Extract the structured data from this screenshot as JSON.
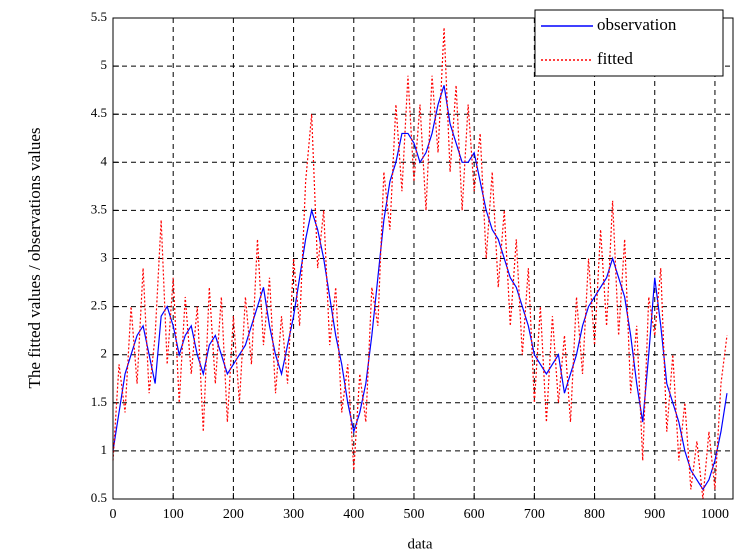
{
  "chart_data": {
    "type": "line",
    "xlabel": "data",
    "ylabel": "The fitted values / observations values",
    "xlim": [
      0,
      1030
    ],
    "ylim": [
      0.5,
      5.5
    ],
    "xticks": [
      0,
      100,
      200,
      300,
      400,
      500,
      600,
      700,
      800,
      900,
      1000
    ],
    "yticks": [
      0.5,
      1,
      1.5,
      2,
      2.5,
      3,
      3.5,
      4,
      4.5,
      5,
      5.5
    ],
    "grid": true,
    "legend": "upper right",
    "x": [
      0,
      10,
      20,
      30,
      40,
      50,
      60,
      70,
      80,
      90,
      100,
      110,
      120,
      130,
      140,
      150,
      160,
      170,
      180,
      190,
      200,
      210,
      220,
      230,
      240,
      250,
      260,
      270,
      280,
      290,
      300,
      310,
      320,
      330,
      340,
      350,
      360,
      370,
      380,
      390,
      400,
      410,
      420,
      430,
      440,
      450,
      460,
      470,
      480,
      490,
      500,
      510,
      520,
      530,
      540,
      550,
      560,
      570,
      580,
      590,
      600,
      610,
      620,
      630,
      640,
      650,
      660,
      670,
      680,
      690,
      700,
      710,
      720,
      730,
      740,
      750,
      760,
      770,
      780,
      790,
      800,
      810,
      820,
      830,
      840,
      850,
      860,
      870,
      880,
      890,
      900,
      910,
      920,
      930,
      940,
      950,
      960,
      970,
      980,
      990,
      1000,
      1010,
      1020
    ],
    "series": [
      {
        "name": "observation",
        "color": "#0000ff",
        "dash": "solid",
        "values": [
          1.0,
          1.4,
          1.8,
          2.0,
          2.2,
          2.3,
          2.0,
          1.7,
          2.4,
          2.5,
          2.3,
          2.0,
          2.2,
          2.3,
          2.0,
          1.8,
          2.1,
          2.2,
          2.0,
          1.8,
          1.9,
          2.0,
          2.1,
          2.3,
          2.5,
          2.7,
          2.3,
          2.0,
          1.8,
          2.1,
          2.4,
          2.8,
          3.2,
          3.5,
          3.3,
          3.0,
          2.6,
          2.2,
          1.9,
          1.5,
          1.2,
          1.4,
          1.7,
          2.2,
          2.8,
          3.4,
          3.8,
          4.0,
          4.3,
          4.3,
          4.2,
          4.0,
          4.1,
          4.3,
          4.6,
          4.8,
          4.4,
          4.2,
          4.0,
          4.0,
          4.1,
          3.8,
          3.5,
          3.3,
          3.2,
          3.0,
          2.8,
          2.7,
          2.5,
          2.3,
          2.0,
          1.9,
          1.8,
          1.9,
          2.0,
          1.6,
          1.8,
          2.0,
          2.3,
          2.5,
          2.6,
          2.7,
          2.8,
          3.0,
          2.8,
          2.6,
          2.2,
          1.7,
          1.3,
          2.0,
          2.8,
          2.3,
          1.7,
          1.5,
          1.3,
          1.0,
          0.8,
          0.7,
          0.6,
          0.7,
          0.9,
          1.2,
          1.6
        ]
      },
      {
        "name": "fitted",
        "color": "#ff0000",
        "dash": "dotted",
        "values": [
          0.9,
          1.9,
          1.4,
          2.5,
          1.7,
          2.9,
          1.6,
          2.2,
          3.4,
          1.9,
          2.8,
          1.5,
          2.6,
          1.8,
          2.5,
          1.2,
          2.7,
          1.7,
          2.6,
          1.3,
          2.4,
          1.5,
          2.6,
          1.9,
          3.2,
          2.1,
          2.8,
          1.6,
          2.4,
          1.7,
          3.0,
          2.3,
          3.8,
          4.5,
          2.9,
          3.5,
          2.1,
          2.7,
          1.4,
          1.9,
          0.8,
          1.8,
          1.3,
          2.7,
          2.3,
          3.9,
          3.3,
          4.6,
          3.7,
          4.9,
          3.8,
          4.6,
          3.5,
          4.9,
          4.1,
          5.4,
          3.9,
          4.8,
          3.5,
          4.6,
          3.7,
          4.3,
          3.0,
          3.9,
          2.7,
          3.5,
          2.3,
          3.2,
          2.0,
          2.9,
          1.5,
          2.5,
          1.3,
          2.4,
          1.5,
          2.2,
          1.3,
          2.6,
          1.8,
          3.0,
          2.1,
          3.3,
          2.3,
          3.6,
          2.2,
          3.2,
          1.6,
          2.3,
          0.9,
          2.6,
          2.2,
          2.9,
          1.2,
          2.0,
          0.9,
          1.5,
          0.6,
          1.1,
          0.5,
          1.2,
          0.6,
          1.7,
          2.2
        ]
      }
    ]
  }
}
